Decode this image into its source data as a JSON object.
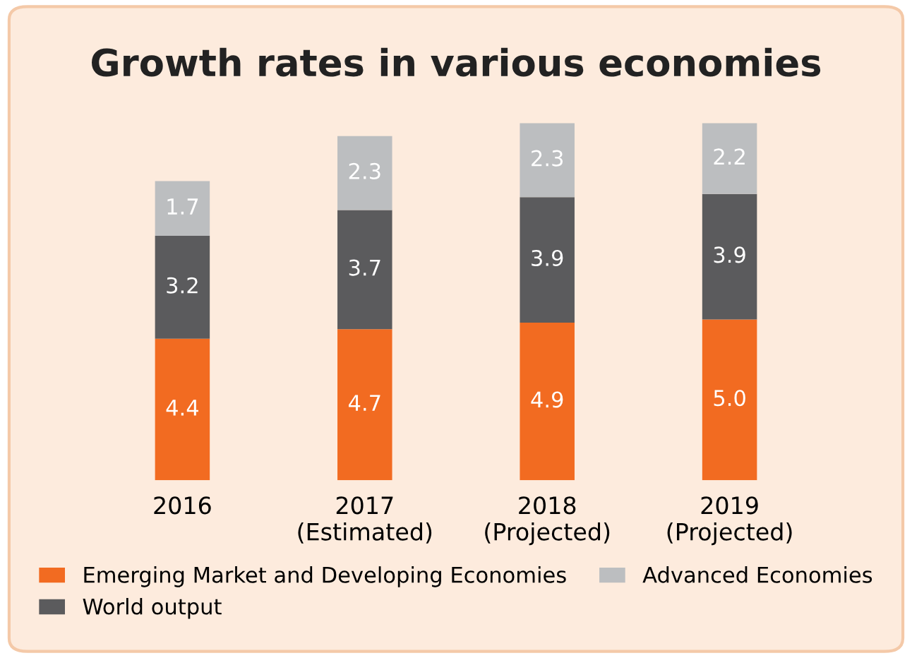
{
  "chart_data": {
    "type": "bar",
    "title": "Growth rates in various economies",
    "categories": [
      "2016",
      "2017\n(Estimated)",
      "2018\n(Projected)",
      "2019\n(Projected)"
    ],
    "stacked": true,
    "legend": "bottom",
    "series": [
      {
        "name": "Emerging Market and Developing Economies",
        "color": "#f26b21",
        "values": [
          4.4,
          4.7,
          4.9,
          5.0
        ],
        "value_labels": [
          "4.4",
          "4.7",
          "4.9",
          "5.0"
        ]
      },
      {
        "name": "World output",
        "color": "#5b5b5d",
        "values": [
          3.2,
          3.7,
          3.9,
          3.9
        ],
        "value_labels": [
          "3.2",
          "3.7",
          "3.9",
          "3.9"
        ]
      },
      {
        "name": "Advanced Economies",
        "color": "#bcbec0",
        "values": [
          1.7,
          2.3,
          2.3,
          2.2
        ],
        "value_labels": [
          "1.7",
          "2.3",
          "2.3",
          "2.2"
        ]
      }
    ]
  }
}
